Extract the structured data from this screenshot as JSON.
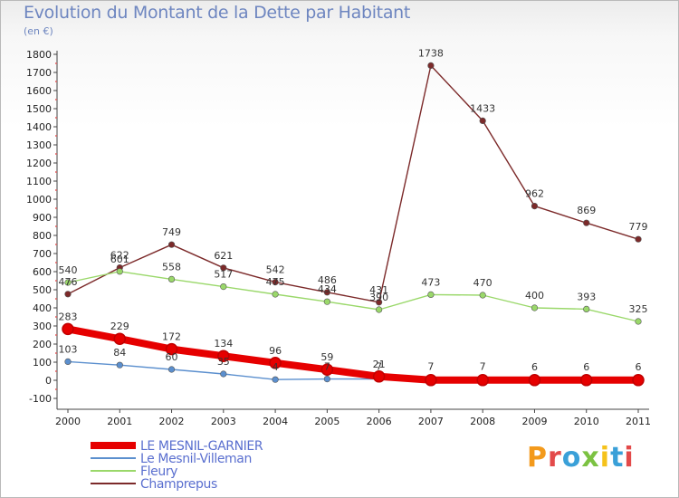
{
  "header": {
    "title": "Evolution du Montant de la Dette par Habitant",
    "subtitle": "(en €)"
  },
  "logo": {
    "letters": [
      "P",
      "r",
      "o",
      "x",
      "i",
      "t",
      "i"
    ],
    "colors": [
      "#f39a1c",
      "#e34a4a",
      "#3aa0d8",
      "#7cc242",
      "#f5c21b",
      "#3aa0d8",
      "#e34a4a"
    ]
  },
  "chart_data": {
    "type": "line",
    "title": "Evolution du Montant de la Dette par Habitant",
    "ylabel": "(en €)",
    "xlabel": "",
    "x": [
      "2000",
      "2001",
      "2002",
      "2003",
      "2004",
      "2005",
      "2006",
      "2007",
      "2008",
      "2009",
      "2010",
      "2011"
    ],
    "ylim": [
      -100,
      1800
    ],
    "yticks": [
      "-100",
      "0",
      "100",
      "200",
      "300",
      "400",
      "500",
      "600",
      "700",
      "800",
      "900",
      "1000",
      "1100",
      "1200",
      "1300",
      "1400",
      "1500",
      "1600",
      "1700",
      "1800"
    ],
    "grid": false,
    "legend_position": "bottom-left",
    "series": [
      {
        "name": "LE MESNIL-GARNIER",
        "color": "#e60000",
        "emphasis": true,
        "values": [
          283,
          229,
          172,
          134,
          96,
          59,
          21,
          1,
          1,
          1,
          1,
          1
        ],
        "labels": [
          "283",
          "229",
          "172",
          "134",
          "96",
          "59",
          "21",
          "",
          "",
          "",
          "",
          ""
        ]
      },
      {
        "name": "Le Mesnil-Villeman",
        "color": "#5b8fce",
        "values": [
          103,
          84,
          60,
          35,
          4,
          7,
          7,
          7,
          7,
          6,
          6,
          6
        ],
        "labels": [
          "103",
          "84",
          "60",
          "35",
          "4",
          "7",
          "7",
          "7",
          "7",
          "6",
          "6",
          "6"
        ]
      },
      {
        "name": "Fleury",
        "color": "#9ad86a",
        "values": [
          540,
          601,
          558,
          517,
          475,
          434,
          390,
          473,
          470,
          400,
          393,
          325
        ],
        "labels": [
          "540",
          "601",
          "558",
          "517",
          "475",
          "434",
          "390",
          "473",
          "470",
          "400",
          "393",
          "325"
        ]
      },
      {
        "name": "Champrepus",
        "color": "#7c2a2a",
        "values": [
          476,
          622,
          749,
          621,
          542,
          486,
          431,
          1738,
          1433,
          962,
          869,
          779
        ],
        "labels": [
          "476",
          "622",
          "749",
          "621",
          "542",
          "486",
          "431",
          "1738",
          "1433",
          "962",
          "869",
          "779"
        ]
      }
    ]
  }
}
